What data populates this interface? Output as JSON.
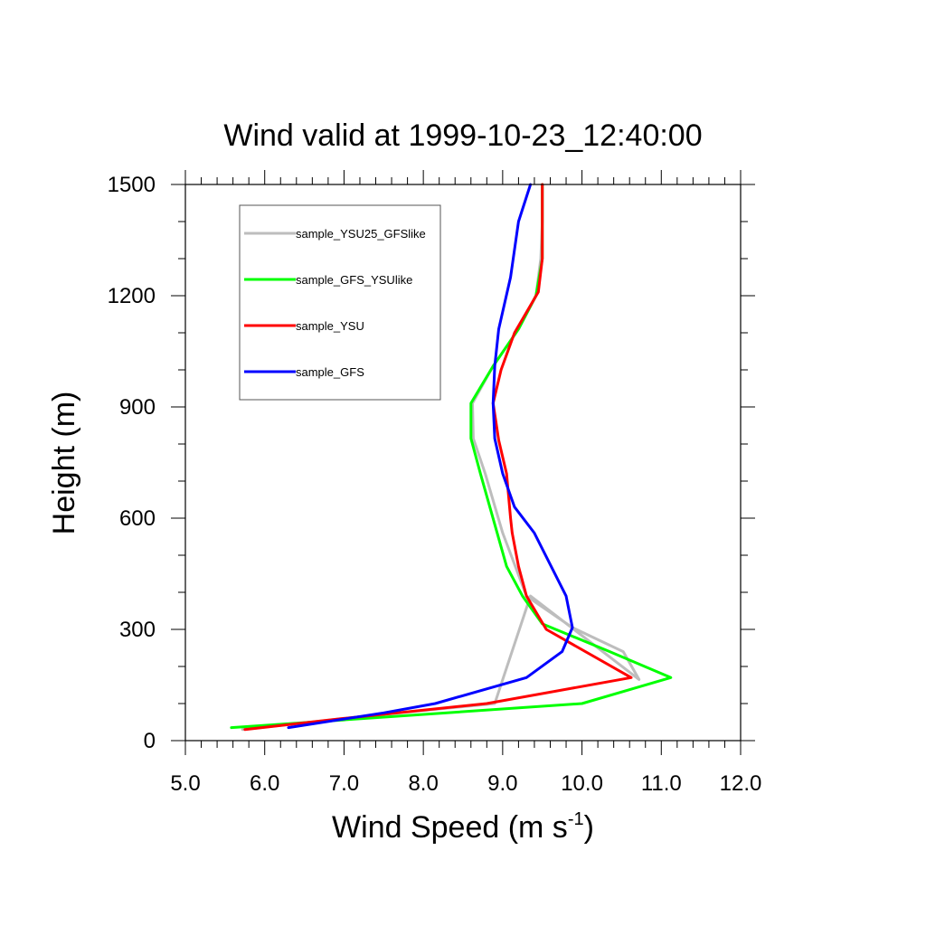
{
  "chart_data": {
    "type": "line",
    "title": "Wind valid at 1999-10-23_12:40:00",
    "xlabel": "Wind Speed (m s",
    "xlabel_superscript": "-1",
    "xlabel_suffix": ")",
    "ylabel": "Height (m)",
    "xlim": [
      5.0,
      12.0
    ],
    "ylim": [
      0,
      1500
    ],
    "x_ticks": [
      "5.0",
      "6.0",
      "7.0",
      "8.0",
      "9.0",
      "10.0",
      "11.0",
      "12.0"
    ],
    "y_ticks": [
      "0",
      "300",
      "600",
      "900",
      "1200",
      "1500"
    ],
    "legend_position": "top-left",
    "series": [
      {
        "name": "sample_YSU25_GFSlike",
        "color": "#bdbdbd",
        "x": [
          5.72,
          7.0,
          8.9,
          9.35,
          10.72,
          10.52,
          9.88,
          9.3,
          9.0,
          8.78,
          8.63,
          8.62,
          8.88,
          9.2,
          9.42,
          9.48,
          9.5,
          9.5,
          9.5
        ],
        "y": [
          30,
          60,
          100,
          390,
          165,
          240,
          305,
          390,
          560,
          720,
          815,
          910,
          1010,
          1110,
          1200,
          1300,
          1400,
          1460,
          1500
        ]
      },
      {
        "name": "sample_GFS_YSUlike",
        "color": "#00ff00",
        "x": [
          5.58,
          10.0,
          11.12,
          10.35,
          9.5,
          9.25,
          9.05,
          8.72,
          8.6,
          8.6,
          8.88,
          9.2,
          9.42,
          9.5,
          9.5
        ],
        "y": [
          35,
          100,
          170,
          240,
          315,
          390,
          470,
          720,
          815,
          910,
          1010,
          1110,
          1200,
          1300,
          1500
        ]
      },
      {
        "name": "sample_YSU",
        "color": "#ff0000",
        "x": [
          5.75,
          7.0,
          8.8,
          10.62,
          9.55,
          9.3,
          9.2,
          9.12,
          9.1,
          9.05,
          8.95,
          8.88,
          8.98,
          9.15,
          9.45,
          9.5,
          9.5,
          9.5
        ],
        "y": [
          30,
          60,
          100,
          170,
          300,
          390,
          470,
          560,
          600,
          720,
          810,
          910,
          1000,
          1100,
          1210,
          1300,
          1400,
          1500
        ]
      },
      {
        "name": "sample_GFS",
        "color": "#0000ff",
        "x": [
          6.3,
          7.5,
          8.15,
          9.3,
          9.75,
          9.88,
          9.8,
          9.4,
          9.15,
          9.0,
          8.9,
          8.88,
          8.9,
          8.95,
          9.1,
          9.2,
          9.35
        ],
        "y": [
          35,
          75,
          100,
          170,
          240,
          305,
          390,
          560,
          630,
          720,
          815,
          910,
          1010,
          1110,
          1250,
          1400,
          1500
        ]
      }
    ]
  }
}
